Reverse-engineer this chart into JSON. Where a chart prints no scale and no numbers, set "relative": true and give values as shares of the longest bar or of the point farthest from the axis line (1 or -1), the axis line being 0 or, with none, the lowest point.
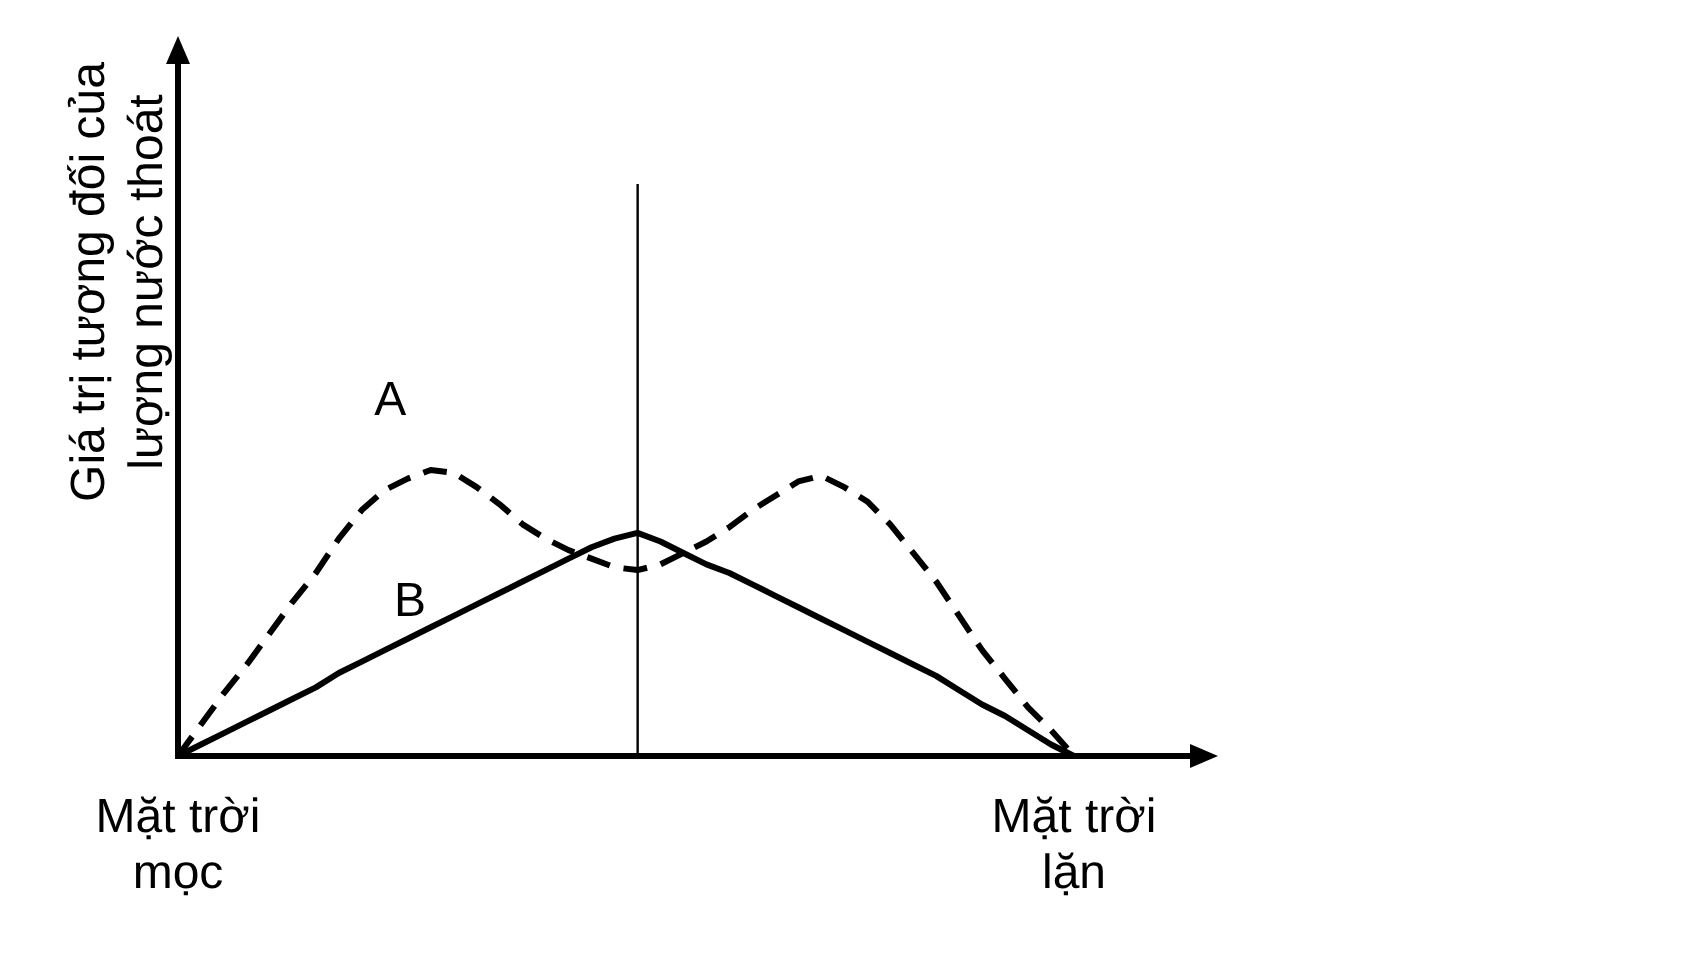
{
  "chart_data": {
    "type": "line",
    "relative": true,
    "ylabel": "Giá trị tương đối của lượng nước thoát",
    "categories": [
      "Mặt trời mọc",
      null,
      null,
      null,
      null,
      null,
      null,
      null,
      null,
      null,
      null,
      null,
      null,
      null,
      null,
      null,
      null,
      null,
      null,
      null,
      null,
      null,
      null,
      null,
      null,
      null,
      null,
      null,
      null,
      null,
      null,
      null,
      null,
      null,
      null,
      null,
      null,
      null,
      null,
      "Mặt trời lặn"
    ],
    "series": [
      {
        "name": "A",
        "color": "#000000",
        "line_style": "dashed",
        "values": [
          0,
          0.11,
          0.22,
          0.32,
          0.43,
          0.54,
          0.64,
          0.76,
          0.86,
          0.93,
          0.97,
          1.0,
          0.99,
          0.94,
          0.88,
          0.81,
          0.76,
          0.72,
          0.69,
          0.66,
          0.65,
          0.67,
          0.71,
          0.75,
          0.8,
          0.86,
          0.91,
          0.96,
          0.98,
          0.94,
          0.89,
          0.81,
          0.71,
          0.61,
          0.49,
          0.37,
          0.27,
          0.17,
          0.09,
          0
        ]
      },
      {
        "name": "B",
        "color": "#000000",
        "line_style": "solid",
        "values": [
          0,
          0.04,
          0.08,
          0.12,
          0.16,
          0.2,
          0.24,
          0.29,
          0.33,
          0.37,
          0.41,
          0.45,
          0.49,
          0.53,
          0.57,
          0.61,
          0.65,
          0.69,
          0.73,
          0.76,
          0.78,
          0.75,
          0.71,
          0.67,
          0.64,
          0.6,
          0.56,
          0.52,
          0.48,
          0.44,
          0.4,
          0.36,
          0.32,
          0.28,
          0.23,
          0.18,
          0.14,
          0.09,
          0.04,
          0
        ]
      }
    ]
  }
}
